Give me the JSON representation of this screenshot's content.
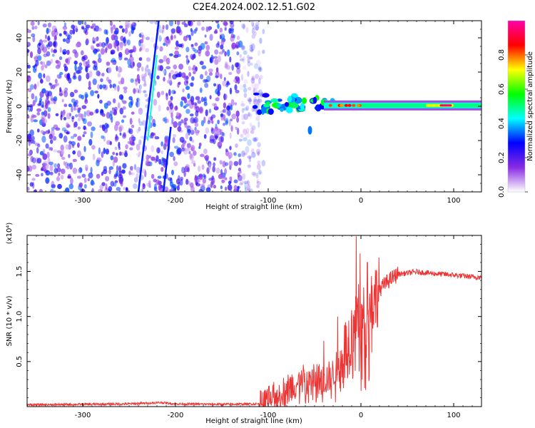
{
  "figure_title": "C2E4.2024.002.12.51.G02",
  "chart_data": [
    {
      "type": "heatmap",
      "title": "C2E4.2024.002.12.51.G02",
      "xlabel": "Height of straight line (km)",
      "ylabel": "Frequency (Hz)",
      "xlim": [
        -360,
        130
      ],
      "ylim": [
        -50,
        50
      ],
      "x_ticks": [
        -300,
        -200,
        -100,
        0,
        100
      ],
      "y_ticks": [
        -40,
        -20,
        0,
        20,
        40
      ],
      "colorbar": {
        "label": "Normalized spectral amplitude",
        "range": [
          0.0,
          1.0
        ],
        "ticks": [
          "0.0",
          "0.2",
          "0.4",
          "0.6",
          "0.8"
        ],
        "colors": [
          "#ffffff",
          "#8a2be2",
          "#0000ff",
          "#00ffff",
          "#00ff00",
          "#ffff00",
          "#ff0000",
          "#ff00aa"
        ]
      },
      "regions": [
        {
          "name": "noise",
          "x_range": [
            -360,
            -115
          ],
          "freq_range": [
            -50,
            50
          ],
          "amplitude": 0.25
        },
        {
          "name": "diagonal-line-a",
          "x_range": [
            -240,
            -215
          ],
          "freq_range": [
            -50,
            50
          ],
          "amplitude": 0.3
        },
        {
          "name": "diagonal-line-b",
          "x_range": [
            -213,
            -205
          ],
          "freq_range": [
            -50,
            -15
          ],
          "amplitude": 0.3
        },
        {
          "name": "signal-emergence",
          "x_range": [
            -115,
            -30
          ],
          "freq_center": 2,
          "amplitude": 0.5
        },
        {
          "name": "carrier",
          "x_range": [
            -30,
            130
          ],
          "freq_center": 0.5,
          "amplitude": 0.6
        },
        {
          "name": "carrier-peak",
          "x_range": [
            70,
            100
          ],
          "freq_center": 0.5,
          "amplitude": 0.95
        }
      ]
    },
    {
      "type": "line",
      "xlabel": "Height of straight line (km)",
      "ylabel": "SNR (10 * v/v)",
      "scale_label": "(x10⁴)",
      "xlim": [
        -360,
        130
      ],
      "ylim": [
        0,
        19000
      ],
      "x_ticks": [
        -300,
        -200,
        -100,
        0,
        100
      ],
      "y_ticks": [
        5000,
        10000,
        15000
      ],
      "y_tick_labels": [
        "0.5",
        "1.0",
        "1.5"
      ],
      "series": [
        {
          "name": "SNR",
          "color": "#ee3333",
          "x": [
            -360,
            -300,
            -250,
            -215,
            -200,
            -150,
            -110,
            -100,
            -90,
            -80,
            -70,
            -60,
            -50,
            -40,
            -30,
            -20,
            -10,
            -5,
            0,
            10,
            20,
            30,
            40,
            60,
            80,
            100,
            120,
            130
          ],
          "y": [
            200,
            250,
            300,
            450,
            300,
            250,
            300,
            500,
            1200,
            1900,
            2500,
            3000,
            3200,
            2900,
            3600,
            5500,
            8000,
            10500,
            9000,
            11500,
            13000,
            14000,
            14700,
            14950,
            14750,
            14600,
            14400,
            14350
          ],
          "spikes": [
            [
              -40,
              7300
            ],
            [
              -25,
              10000
            ],
            [
              -5,
              18900
            ],
            [
              -1,
              17000
            ],
            [
              7,
              16000
            ]
          ]
        }
      ]
    }
  ]
}
